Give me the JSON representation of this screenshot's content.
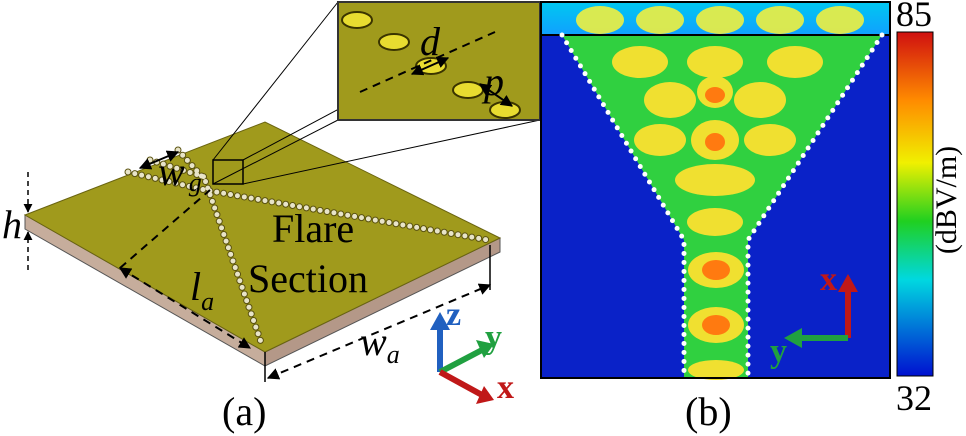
{
  "panel_a": {
    "caption": "(a)",
    "flare_label": [
      "Flare",
      "Section"
    ],
    "dimensions": {
      "h": "h",
      "w_g": {
        "base": "w",
        "sub": "g"
      },
      "l_a": {
        "base": "l",
        "sub": "a"
      },
      "w_a": {
        "base": "w",
        "sub": "a"
      },
      "d": "d",
      "p": "p"
    },
    "axes": {
      "z": "z",
      "y": "y",
      "x": "x"
    }
  },
  "panel_b": {
    "caption": "(b)",
    "colorbar": {
      "max": 85,
      "min": 32,
      "unit": "(dBV/m)"
    },
    "axes": {
      "x": "x",
      "y": "y"
    }
  }
}
